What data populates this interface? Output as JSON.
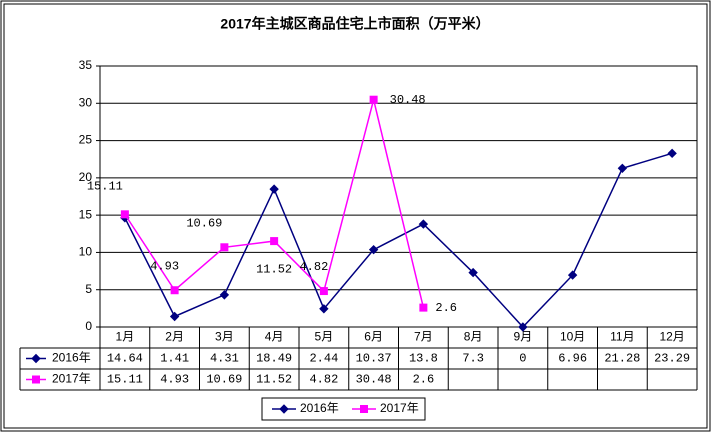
{
  "chart_data": {
    "type": "line",
    "title": "2017年主城区商品住宅上市面积（万平米）",
    "categories": [
      "1月",
      "2月",
      "3月",
      "4月",
      "5月",
      "6月",
      "7月",
      "8月",
      "9月",
      "10月",
      "11月",
      "12月"
    ],
    "series": [
      {
        "name": "2016年",
        "color": "#000080",
        "marker": "diamond",
        "values": [
          14.64,
          1.41,
          4.31,
          18.49,
          2.44,
          10.37,
          13.8,
          7.3,
          0,
          6.96,
          21.28,
          23.29
        ]
      },
      {
        "name": "2017年",
        "color": "#ff00ff",
        "marker": "square",
        "values": [
          15.11,
          4.93,
          10.69,
          11.52,
          4.82,
          30.48,
          2.6,
          null,
          null,
          null,
          null,
          null
        ],
        "data_labels": true
      }
    ],
    "ylim": [
      0,
      35
    ],
    "yticks": [
      0,
      5,
      10,
      15,
      20,
      25,
      30,
      35
    ],
    "grid": true,
    "legend": "bottom",
    "data_table": true
  }
}
